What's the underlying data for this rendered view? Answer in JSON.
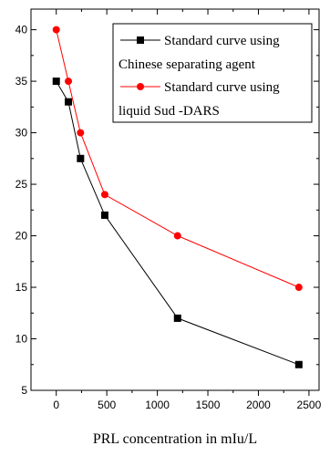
{
  "chart_data": {
    "type": "line",
    "title": "",
    "xlabel": "PRL concentration in mIu/L",
    "ylabel": "",
    "xlim": [
      -250,
      2600
    ],
    "ylim": [
      5,
      42
    ],
    "xticks": [
      0,
      500,
      1000,
      1500,
      2000,
      2500
    ],
    "yticks": [
      5,
      10,
      15,
      20,
      25,
      30,
      35,
      40
    ],
    "legend_position": "top-right",
    "series": [
      {
        "name_lines": [
          "Standard curve using",
          "Chinese separating agent"
        ],
        "color": "#000000",
        "marker": "square",
        "x": [
          0,
          120,
          240,
          480,
          1200,
          2400
        ],
        "y": [
          35,
          33,
          27.5,
          22,
          12,
          7.5
        ]
      },
      {
        "name_lines": [
          "Standard curve using",
          "liquid Sud -DARS"
        ],
        "color": "#ff0000",
        "marker": "circle",
        "x": [
          0,
          120,
          240,
          480,
          1200,
          2400
        ],
        "y": [
          40,
          35,
          30,
          24,
          20,
          15
        ]
      }
    ]
  }
}
